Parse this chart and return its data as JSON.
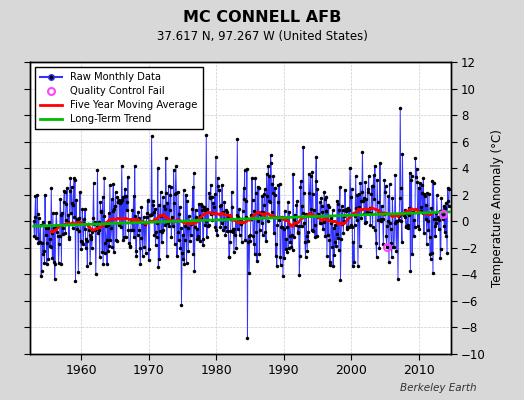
{
  "title": "MC CONNELL AFB",
  "subtitle": "37.617 N, 97.267 W (United States)",
  "ylabel": "Temperature Anomaly (°C)",
  "credit": "Berkeley Earth",
  "start_year": 1953.0,
  "end_year": 2014.5,
  "ylim": [
    -10,
    12
  ],
  "yticks": [
    -10,
    -8,
    -6,
    -4,
    -2,
    0,
    2,
    4,
    6,
    8,
    10,
    12
  ],
  "xticks": [
    1960,
    1970,
    1980,
    1990,
    2000,
    2010
  ],
  "bg_color": "#d8d8d8",
  "plot_bg_color": "#ffffff",
  "line_color": "#3333ff",
  "dot_color": "#000000",
  "ma_color": "#ff0000",
  "trend_color": "#00bb00",
  "qc_color": "#ff44ff",
  "seed": 42
}
